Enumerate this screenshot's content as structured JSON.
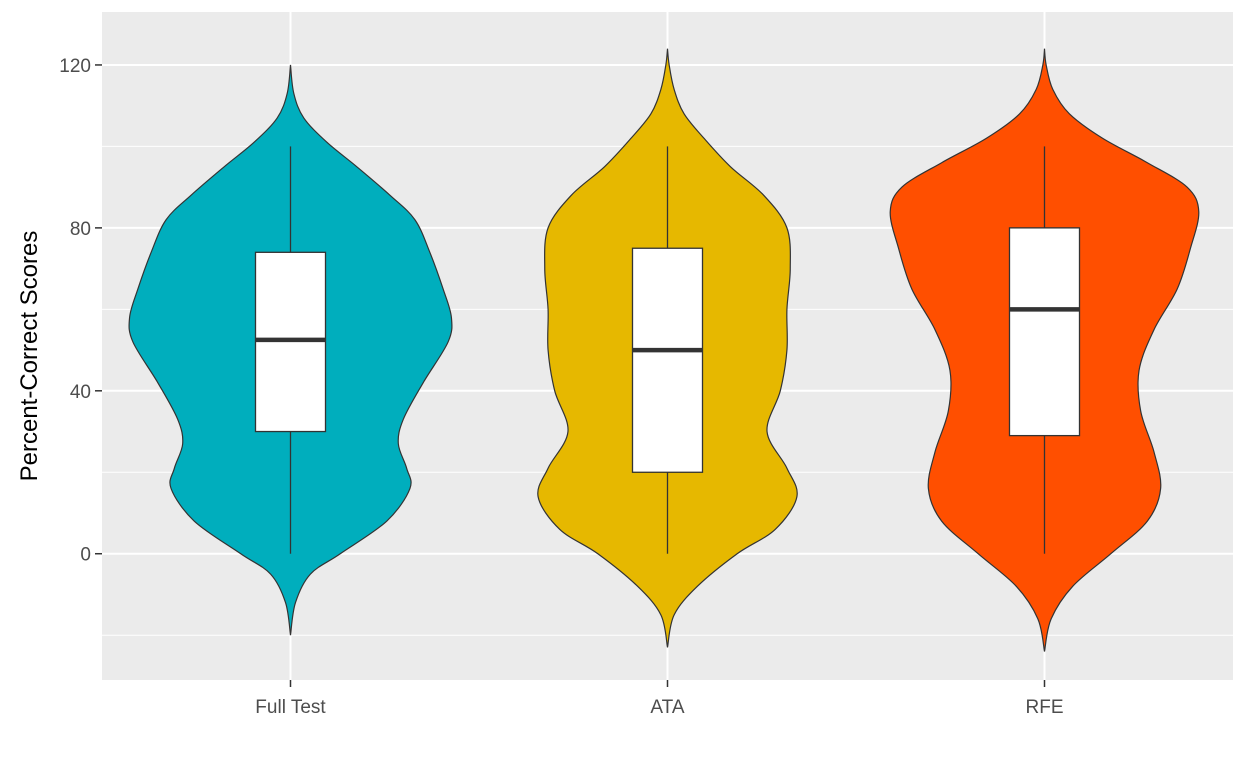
{
  "chart_data": {
    "type": "violin",
    "title": "",
    "xlabel": "",
    "ylabel": "Percent-Correct Scores",
    "ylim": [
      -31,
      133
    ],
    "yticks": [
      0,
      40,
      80,
      120
    ],
    "grid": true,
    "legend": "none",
    "colors": {
      "panel": "#EBEBEB",
      "grid": "#FFFFFF",
      "outline": "#333333",
      "box_fill": "#FFFFFF"
    },
    "categories": [
      "Full Test",
      "ATA",
      "RFE"
    ],
    "series": [
      {
        "category": "Full Test",
        "color": "#00AEBD",
        "box": {
          "min": 0,
          "q1": 30,
          "median": 52.5,
          "q3": 74,
          "max": 100
        },
        "violin_range": [
          -20,
          120
        ],
        "density": [
          [
            -20,
            0.0
          ],
          [
            -12,
            0.03
          ],
          [
            -5,
            0.12
          ],
          [
            0,
            0.3
          ],
          [
            8,
            0.58
          ],
          [
            16,
            0.72
          ],
          [
            21,
            0.7
          ],
          [
            27,
            0.65
          ],
          [
            33,
            0.68
          ],
          [
            42,
            0.8
          ],
          [
            52,
            0.95
          ],
          [
            58,
            0.97
          ],
          [
            65,
            0.92
          ],
          [
            74,
            0.84
          ],
          [
            82,
            0.75
          ],
          [
            88,
            0.6
          ],
          [
            95,
            0.4
          ],
          [
            101,
            0.22
          ],
          [
            107,
            0.08
          ],
          [
            113,
            0.02
          ],
          [
            120,
            0.0
          ]
        ]
      },
      {
        "category": "ATA",
        "color": "#E6B800",
        "box": {
          "min": 0,
          "q1": 20,
          "median": 50,
          "q3": 75,
          "max": 100
        },
        "violin_range": [
          -23,
          124
        ],
        "density": [
          [
            -23,
            0.0
          ],
          [
            -15,
            0.04
          ],
          [
            -8,
            0.18
          ],
          [
            0,
            0.42
          ],
          [
            6,
            0.65
          ],
          [
            14,
            0.78
          ],
          [
            21,
            0.72
          ],
          [
            30,
            0.6
          ],
          [
            40,
            0.68
          ],
          [
            50,
            0.72
          ],
          [
            60,
            0.72
          ],
          [
            70,
            0.74
          ],
          [
            80,
            0.72
          ],
          [
            88,
            0.58
          ],
          [
            95,
            0.38
          ],
          [
            102,
            0.22
          ],
          [
            108,
            0.1
          ],
          [
            114,
            0.04
          ],
          [
            120,
            0.01
          ],
          [
            124,
            0.0
          ]
        ]
      },
      {
        "category": "RFE",
        "color": "#FF4F00",
        "box": {
          "min": 0,
          "q1": 29,
          "median": 60,
          "q3": 80,
          "max": 100
        },
        "violin_range": [
          -24,
          124
        ],
        "density": [
          [
            -24,
            0.0
          ],
          [
            -16,
            0.04
          ],
          [
            -8,
            0.17
          ],
          [
            0,
            0.4
          ],
          [
            8,
            0.62
          ],
          [
            16,
            0.7
          ],
          [
            25,
            0.66
          ],
          [
            35,
            0.58
          ],
          [
            45,
            0.57
          ],
          [
            55,
            0.66
          ],
          [
            65,
            0.8
          ],
          [
            75,
            0.88
          ],
          [
            84,
            0.93
          ],
          [
            90,
            0.86
          ],
          [
            96,
            0.62
          ],
          [
            102,
            0.35
          ],
          [
            108,
            0.15
          ],
          [
            114,
            0.05
          ],
          [
            120,
            0.01
          ],
          [
            124,
            0.0
          ]
        ]
      }
    ]
  }
}
